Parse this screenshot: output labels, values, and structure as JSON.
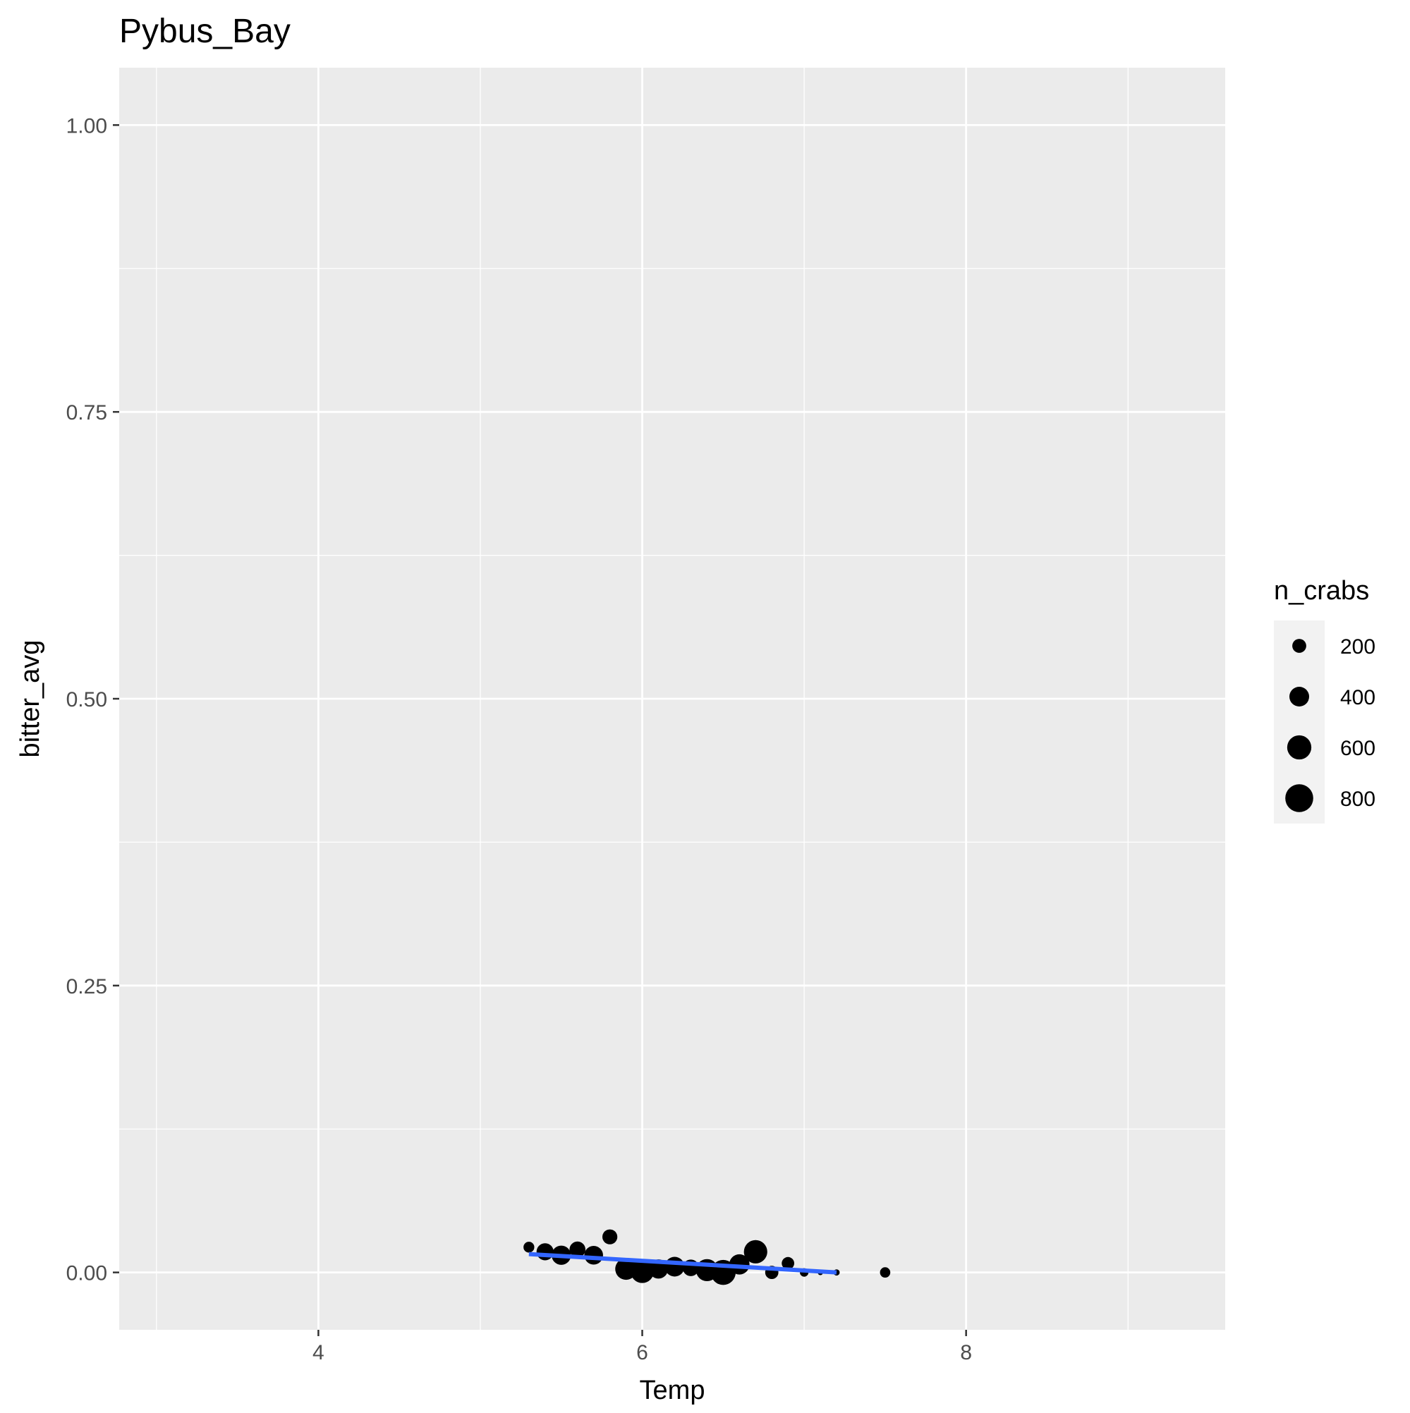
{
  "chart_data": {
    "type": "scatter",
    "title": "Pybus_Bay",
    "xlabel": "Temp",
    "ylabel": "bitter_avg",
    "xlim": [
      2.77,
      9.6
    ],
    "ylim": [
      -0.05,
      1.05
    ],
    "x_ticks": [
      4,
      6,
      8
    ],
    "x_tick_labels": [
      "4",
      "6",
      "8"
    ],
    "y_ticks": [
      0,
      0.25,
      0.5,
      0.75,
      1
    ],
    "y_tick_labels": [
      "0.00",
      "0.25",
      "0.50",
      "0.75",
      "1.00"
    ],
    "grid": true,
    "size_variable": "n_crabs",
    "legend": {
      "title": "n_crabs",
      "placement": "right",
      "entries": [
        {
          "label": "200",
          "value": 200
        },
        {
          "label": "400",
          "value": 400
        },
        {
          "label": "600",
          "value": 600
        },
        {
          "label": "800",
          "value": 800
        }
      ]
    },
    "points": [
      {
        "x": 5.3,
        "y": 0.022,
        "n_crabs": 120
      },
      {
        "x": 5.4,
        "y": 0.018,
        "n_crabs": 300
      },
      {
        "x": 5.5,
        "y": 0.015,
        "n_crabs": 380
      },
      {
        "x": 5.6,
        "y": 0.02,
        "n_crabs": 260
      },
      {
        "x": 5.7,
        "y": 0.015,
        "n_crabs": 360
      },
      {
        "x": 5.8,
        "y": 0.031,
        "n_crabs": 230
      },
      {
        "x": 5.9,
        "y": 0.003,
        "n_crabs": 480
      },
      {
        "x": 6.0,
        "y": 0.001,
        "n_crabs": 560
      },
      {
        "x": 6.1,
        "y": 0.003,
        "n_crabs": 380
      },
      {
        "x": 6.2,
        "y": 0.005,
        "n_crabs": 400
      },
      {
        "x": 6.3,
        "y": 0.004,
        "n_crabs": 280
      },
      {
        "x": 6.4,
        "y": 0.002,
        "n_crabs": 500
      },
      {
        "x": 6.5,
        "y": 0.0,
        "n_crabs": 640
      },
      {
        "x": 6.6,
        "y": 0.007,
        "n_crabs": 420
      },
      {
        "x": 6.7,
        "y": 0.018,
        "n_crabs": 560
      },
      {
        "x": 6.8,
        "y": 0.0,
        "n_crabs": 180
      },
      {
        "x": 6.9,
        "y": 0.008,
        "n_crabs": 160
      },
      {
        "x": 7.0,
        "y": 0.0,
        "n_crabs": 75
      },
      {
        "x": 7.1,
        "y": 0.0,
        "n_crabs": 30
      },
      {
        "x": 7.2,
        "y": 0.0,
        "n_crabs": 40
      },
      {
        "x": 7.5,
        "y": 0.0,
        "n_crabs": 110
      }
    ],
    "trend_line": {
      "x": [
        5.3,
        7.2
      ],
      "y": [
        0.016,
        0.0
      ],
      "color": "#3366FF"
    },
    "colors": {
      "panel": "#EBEBEB",
      "grid": "#FFFFFF",
      "points": "#000000",
      "axis_text": "#4D4D4D",
      "text": "#000000",
      "legend_key": "#F2F2F2"
    }
  }
}
